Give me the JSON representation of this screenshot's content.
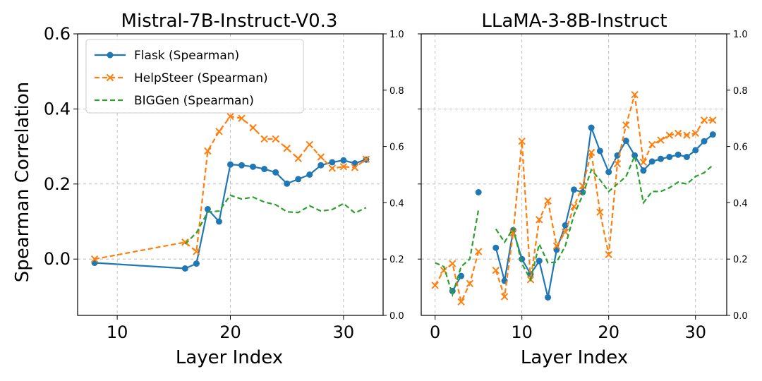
{
  "chart_data": [
    {
      "type": "line",
      "title": "Mistral-7B-Instruct-V0.3",
      "xlabel": "Layer Index",
      "ylabel": "Spearman Correlation",
      "xlim": [
        6.5,
        33.5
      ],
      "ylim": [
        -0.15,
        0.6
      ],
      "xticks": [
        10,
        20,
        30
      ],
      "yticks": [
        0.0,
        0.2,
        0.4,
        0.6
      ],
      "ytick_labels": [
        "0.0",
        "0.2",
        "0.4",
        "0.6"
      ],
      "right_axis": {
        "ylim": [
          0.0,
          1.0
        ],
        "ticks": [
          0.0,
          0.2,
          0.4,
          0.6,
          0.8,
          1.0
        ],
        "tick_labels": [
          "0.0",
          "0.2",
          "0.4",
          "0.6",
          "0.8",
          "1.0"
        ]
      },
      "legend": {
        "position": "top-left",
        "entries": [
          "Flask (Spearman)",
          "HelpSteer (Spearman)",
          "BIGGen (Spearman)"
        ]
      },
      "series": [
        {
          "name": "Flask (Spearman)",
          "color": "#1f77b4",
          "style": "solid",
          "marker": "circle",
          "points": [
            [
              8,
              -0.01
            ],
            [
              16,
              -0.025
            ],
            [
              17,
              -0.012
            ],
            [
              18,
              0.133
            ],
            [
              19,
              0.1
            ],
            [
              20,
              0.252
            ],
            [
              21,
              0.25
            ],
            [
              22,
              0.246
            ],
            [
              23,
              0.24
            ],
            [
              24,
              0.231
            ],
            [
              25,
              0.201
            ],
            [
              26,
              0.213
            ],
            [
              27,
              0.225
            ],
            [
              28,
              0.25
            ],
            [
              29,
              0.258
            ],
            [
              30,
              0.263
            ],
            [
              31,
              0.255
            ],
            [
              32,
              0.265
            ]
          ]
        },
        {
          "name": "HelpSteer (Spearman)",
          "color": "#ff7f0e",
          "style": "dashed",
          "marker": "x",
          "points": [
            [
              8,
              0.0
            ],
            [
              16,
              0.045
            ],
            [
              17,
              0.02
            ],
            [
              18,
              0.288
            ],
            [
              19,
              0.34
            ],
            [
              20,
              0.38
            ],
            [
              21,
              0.375
            ],
            [
              22,
              0.35
            ],
            [
              23,
              0.32
            ],
            [
              24,
              0.32
            ],
            [
              25,
              0.295
            ],
            [
              26,
              0.268
            ],
            [
              27,
              0.305
            ],
            [
              28,
              0.272
            ],
            [
              29,
              0.242
            ],
            [
              30,
              0.246
            ],
            [
              31,
              0.244
            ],
            [
              32,
              0.266
            ]
          ]
        },
        {
          "name": "BIGGen (Spearman)",
          "color": "#2ca02c",
          "style": "dashed",
          "marker": "none",
          "points": [
            [
              16,
              0.04
            ],
            [
              17,
              0.07
            ],
            [
              18,
              0.125
            ],
            [
              19,
              0.128
            ],
            [
              20,
              0.17
            ],
            [
              21,
              0.16
            ],
            [
              22,
              0.165
            ],
            [
              23,
              0.152
            ],
            [
              24,
              0.145
            ],
            [
              25,
              0.126
            ],
            [
              26,
              0.124
            ],
            [
              27,
              0.142
            ],
            [
              28,
              0.128
            ],
            [
              29,
              0.132
            ],
            [
              30,
              0.148
            ],
            [
              31,
              0.123
            ],
            [
              32,
              0.137
            ]
          ]
        }
      ]
    },
    {
      "type": "line",
      "title": "LLaMA-3-8B-Instruct",
      "xlabel": "Layer Index",
      "ylabel": "",
      "xlim": [
        -1.6,
        33.6
      ],
      "ylim": [
        -0.15,
        0.6
      ],
      "xticks": [
        0,
        10,
        20,
        30
      ],
      "right_axis": {
        "ylim": [
          0.0,
          1.0
        ],
        "ticks": [
          0.0,
          0.2,
          0.4,
          0.6,
          0.8,
          1.0
        ],
        "tick_labels": [
          "0.0",
          "0.2",
          "0.4",
          "0.6",
          "0.8",
          "1.0"
        ]
      },
      "series": [
        {
          "name": "Flask (Spearman)",
          "color": "#1f77b4",
          "style": "solid",
          "marker": "circle",
          "segments": [
            [
              [
                2,
                -0.085
              ],
              [
                3,
                -0.045
              ]
            ],
            [
              [
                5,
                0.178
              ]
            ],
            [
              [
                7,
                0.03
              ],
              [
                8,
                -0.058
              ],
              [
                9,
                0.077
              ],
              [
                10,
                0.0
              ],
              [
                11,
                -0.04
              ],
              [
                12,
                -0.005
              ],
              [
                13,
                -0.102
              ],
              [
                14,
                0.025
              ],
              [
                15,
                0.09
              ],
              [
                16,
                0.185
              ],
              [
                17,
                0.178
              ],
              [
                18,
                0.35
              ],
              [
                19,
                0.288
              ],
              [
                20,
                0.232
              ],
              [
                21,
                0.276
              ],
              [
                22,
                0.315
              ],
              [
                23,
                0.276
              ],
              [
                24,
                0.236
              ],
              [
                25,
                0.26
              ],
              [
                26,
                0.267
              ],
              [
                27,
                0.272
              ],
              [
                28,
                0.278
              ],
              [
                29,
                0.272
              ],
              [
                30,
                0.29
              ],
              [
                31,
                0.314
              ],
              [
                32,
                0.332
              ]
            ]
          ]
        },
        {
          "name": "HelpSteer (Spearman)",
          "color": "#ff7f0e",
          "style": "dashed",
          "marker": "x",
          "segments": [
            [
              [
                0,
                -0.07
              ],
              [
                1,
                -0.03
              ],
              [
                2,
                -0.012
              ],
              [
                3,
                -0.114
              ],
              [
                4,
                -0.065
              ],
              [
                5,
                0.02
              ]
            ],
            [
              [
                7,
                -0.03
              ],
              [
                8,
                -0.1
              ],
              [
                9,
                0.07
              ],
              [
                10,
                0.314
              ],
              [
                11,
                -0.055
              ],
              [
                12,
                0.105
              ],
              [
                13,
                0.155
              ],
              [
                14,
                0.035
              ],
              [
                15,
                0.072
              ],
              [
                16,
                0.14
              ],
              [
                17,
                0.195
              ],
              [
                18,
                0.284
              ],
              [
                19,
                0.125
              ],
              [
                20,
                0.012
              ],
              [
                21,
                0.254
              ],
              [
                22,
                0.357
              ],
              [
                23,
                0.438
              ],
              [
                24,
                0.258
              ],
              [
                25,
                0.305
              ],
              [
                26,
                0.317
              ],
              [
                27,
                0.33
              ],
              [
                28,
                0.335
              ],
              [
                29,
                0.33
              ],
              [
                30,
                0.335
              ],
              [
                31,
                0.37
              ],
              [
                32,
                0.37
              ]
            ]
          ]
        },
        {
          "name": "BIGGen (Spearman)",
          "color": "#2ca02c",
          "style": "dashed",
          "marker": "none",
          "segments": [
            [
              [
                0,
                -0.01
              ],
              [
                1,
                -0.02
              ],
              [
                2,
                -0.095
              ],
              [
                3,
                -0.02
              ],
              [
                4,
                0.0
              ],
              [
                5,
                0.132
              ]
            ],
            [
              [
                7,
                0.08
              ],
              [
                8,
                0.045
              ],
              [
                9,
                0.082
              ],
              [
                10,
                -0.012
              ],
              [
                11,
                -0.055
              ],
              [
                12,
                0.04
              ],
              [
                13,
                -0.01
              ],
              [
                14,
                -0.008
              ],
              [
                15,
                0.035
              ],
              [
                16,
                0.118
              ],
              [
                17,
                0.17
              ],
              [
                18,
                0.238
              ],
              [
                19,
                0.211
              ],
              [
                20,
                0.18
              ],
              [
                21,
                0.2
              ],
              [
                22,
                0.22
              ],
              [
                23,
                0.275
              ],
              [
                24,
                0.15
              ],
              [
                25,
                0.18
              ],
              [
                26,
                0.18
              ],
              [
                27,
                0.19
              ],
              [
                28,
                0.205
              ],
              [
                29,
                0.2
              ],
              [
                30,
                0.22
              ],
              [
                31,
                0.23
              ],
              [
                32,
                0.25
              ]
            ]
          ]
        }
      ]
    }
  ]
}
